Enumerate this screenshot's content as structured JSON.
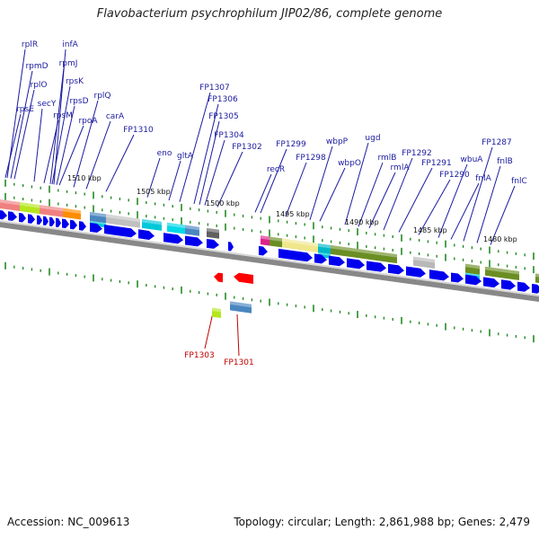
{
  "title": "Flavobacterium psychrophilum JIP02/86, complete genome",
  "footer": {
    "accession": "Accession: NC_009613",
    "summary": "Topology: circular; Length: 2,861,988 bp; Genes: 2,479"
  },
  "colors": {
    "gene_arrow": "#0000ee",
    "backbone": "#888888",
    "tick": "#228b22",
    "label_plus": "#1a1aa0",
    "label_minus": "#c00000"
  },
  "kbp_labels": [
    "1510 kbp",
    "1505 kbp",
    "1500 kbp",
    "1495 kbp",
    "1490 kbp",
    "1485 kbp",
    "1480 kbp"
  ],
  "genes_top": [
    "rplR",
    "infA",
    "rpmD",
    "rpmJ",
    "rplO",
    "rpsK",
    "rpsE",
    "secY",
    "rpsD",
    "rpsM",
    "rplQ",
    "rpoA",
    "carA",
    "FP1310",
    "FP1307",
    "FP1306",
    "FP1305",
    "FP1304",
    "eno",
    "gltA",
    "FP1302",
    "FP1299",
    "recR",
    "FP1298",
    "wbpP",
    "wbpO",
    "ugd",
    "rmlB",
    "rmlA",
    "FP1292",
    "FP1291",
    "FP1290",
    "wbuA",
    "fnlA",
    "FP1287",
    "fnlB",
    "fnlC"
  ],
  "genes_bottom": [
    "FP1303",
    "FP1301"
  ]
}
